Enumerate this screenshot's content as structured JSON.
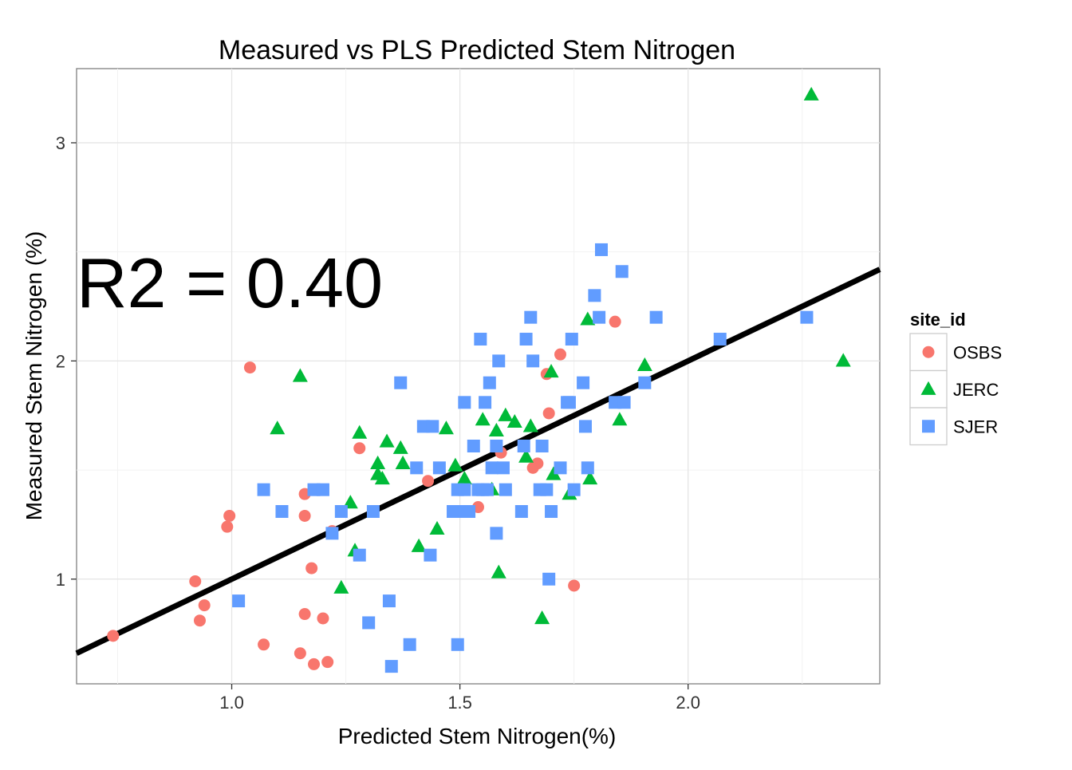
{
  "chart_data": {
    "type": "scatter",
    "title": "Measured vs PLS Predicted Stem Nitrogen",
    "xlabel": "Predicted Stem Nitrogen(%)",
    "ylabel": "Measured Stem Nitrogen (%)",
    "xlim": [
      0.66,
      2.42
    ],
    "ylim": [
      0.52,
      3.34
    ],
    "xticks": [
      1.0,
      1.5,
      2.0
    ],
    "xtick_labels": [
      "1.0",
      "1.5",
      "2.0"
    ],
    "yticks": [
      1,
      2,
      3
    ],
    "ytick_labels": [
      "1",
      "2",
      "3"
    ],
    "grid": true,
    "legend_position": "right",
    "legend_title": "site_id",
    "annotation": "R2 = 0.40",
    "fit_line": {
      "intercept": 0,
      "slope": 1
    },
    "series": [
      {
        "name": "OSBS",
        "marker": "circle",
        "color": "#F8766D",
        "points": [
          [
            0.74,
            0.74
          ],
          [
            0.92,
            0.99
          ],
          [
            0.93,
            0.81
          ],
          [
            0.94,
            0.88
          ],
          [
            0.99,
            1.24
          ],
          [
            0.995,
            1.29
          ],
          [
            1.04,
            1.97
          ],
          [
            1.07,
            0.7
          ],
          [
            1.15,
            0.66
          ],
          [
            1.16,
            1.39
          ],
          [
            1.16,
            1.29
          ],
          [
            1.16,
            0.84
          ],
          [
            1.175,
            1.05
          ],
          [
            1.18,
            0.61
          ],
          [
            1.2,
            0.82
          ],
          [
            1.21,
            0.62
          ],
          [
            1.22,
            1.22
          ],
          [
            1.28,
            1.6
          ],
          [
            1.43,
            1.45
          ],
          [
            1.54,
            1.33
          ],
          [
            1.59,
            1.58
          ],
          [
            1.66,
            1.51
          ],
          [
            1.67,
            1.53
          ],
          [
            1.69,
            1.94
          ],
          [
            1.695,
            1.76
          ],
          [
            1.72,
            2.03
          ],
          [
            1.75,
            0.97
          ],
          [
            1.84,
            2.18
          ]
        ]
      },
      {
        "name": "JERC",
        "marker": "triangle",
        "color": "#00BA38",
        "points": [
          [
            1.1,
            1.69
          ],
          [
            1.15,
            1.93
          ],
          [
            1.24,
            0.96
          ],
          [
            1.26,
            1.35
          ],
          [
            1.27,
            1.13
          ],
          [
            1.28,
            1.67
          ],
          [
            1.32,
            1.53
          ],
          [
            1.32,
            1.48
          ],
          [
            1.33,
            1.46
          ],
          [
            1.34,
            1.63
          ],
          [
            1.37,
            1.6
          ],
          [
            1.375,
            1.53
          ],
          [
            1.41,
            1.15
          ],
          [
            1.45,
            1.23
          ],
          [
            1.47,
            1.69
          ],
          [
            1.49,
            1.52
          ],
          [
            1.51,
            1.46
          ],
          [
            1.55,
            1.73
          ],
          [
            1.57,
            1.41
          ],
          [
            1.58,
            1.68
          ],
          [
            1.585,
            1.03
          ],
          [
            1.6,
            1.75
          ],
          [
            1.62,
            1.72
          ],
          [
            1.645,
            1.56
          ],
          [
            1.655,
            1.7
          ],
          [
            1.68,
            0.82
          ],
          [
            1.7,
            1.95
          ],
          [
            1.705,
            1.48
          ],
          [
            1.74,
            1.39
          ],
          [
            1.78,
            2.19
          ],
          [
            1.785,
            1.46
          ],
          [
            1.85,
            1.73
          ],
          [
            1.905,
            1.98
          ],
          [
            2.27,
            3.22
          ],
          [
            2.34,
            2.0
          ]
        ]
      },
      {
        "name": "SJER",
        "marker": "square",
        "color": "#619CFF",
        "points": [
          [
            1.015,
            0.9
          ],
          [
            1.07,
            1.41
          ],
          [
            1.11,
            1.31
          ],
          [
            1.18,
            1.41
          ],
          [
            1.2,
            1.41
          ],
          [
            1.22,
            1.21
          ],
          [
            1.24,
            1.31
          ],
          [
            1.28,
            1.11
          ],
          [
            1.3,
            0.8
          ],
          [
            1.31,
            1.31
          ],
          [
            1.345,
            0.9
          ],
          [
            1.35,
            0.6
          ],
          [
            1.37,
            1.9
          ],
          [
            1.39,
            0.7
          ],
          [
            1.405,
            1.51
          ],
          [
            1.42,
            1.7
          ],
          [
            1.435,
            1.11
          ],
          [
            1.44,
            1.7
          ],
          [
            1.455,
            1.51
          ],
          [
            1.485,
            1.31
          ],
          [
            1.495,
            1.41
          ],
          [
            1.495,
            0.7
          ],
          [
            1.505,
            1.31
          ],
          [
            1.51,
            1.41
          ],
          [
            1.51,
            1.81
          ],
          [
            1.52,
            1.31
          ],
          [
            1.53,
            1.61
          ],
          [
            1.54,
            1.41
          ],
          [
            1.545,
            2.1
          ],
          [
            1.55,
            1.41
          ],
          [
            1.555,
            1.81
          ],
          [
            1.56,
            1.41
          ],
          [
            1.565,
            1.9
          ],
          [
            1.57,
            1.51
          ],
          [
            1.58,
            1.61
          ],
          [
            1.58,
            1.21
          ],
          [
            1.585,
            2.0
          ],
          [
            1.595,
            1.51
          ],
          [
            1.6,
            1.41
          ],
          [
            1.635,
            1.31
          ],
          [
            1.64,
            1.61
          ],
          [
            1.645,
            2.1
          ],
          [
            1.655,
            2.2
          ],
          [
            1.66,
            2.0
          ],
          [
            1.675,
            1.41
          ],
          [
            1.68,
            1.61
          ],
          [
            1.69,
            1.41
          ],
          [
            1.695,
            1.0
          ],
          [
            1.7,
            1.31
          ],
          [
            1.72,
            1.51
          ],
          [
            1.735,
            1.81
          ],
          [
            1.74,
            1.81
          ],
          [
            1.745,
            2.1
          ],
          [
            1.75,
            1.41
          ],
          [
            1.77,
            1.9
          ],
          [
            1.775,
            1.7
          ],
          [
            1.78,
            1.51
          ],
          [
            1.795,
            2.3
          ],
          [
            1.805,
            2.2
          ],
          [
            1.81,
            2.51
          ],
          [
            1.84,
            1.81
          ],
          [
            1.855,
            2.41
          ],
          [
            1.86,
            1.81
          ],
          [
            1.905,
            1.9
          ],
          [
            1.93,
            2.2
          ],
          [
            2.07,
            2.1
          ],
          [
            2.26,
            2.2
          ]
        ]
      }
    ]
  }
}
